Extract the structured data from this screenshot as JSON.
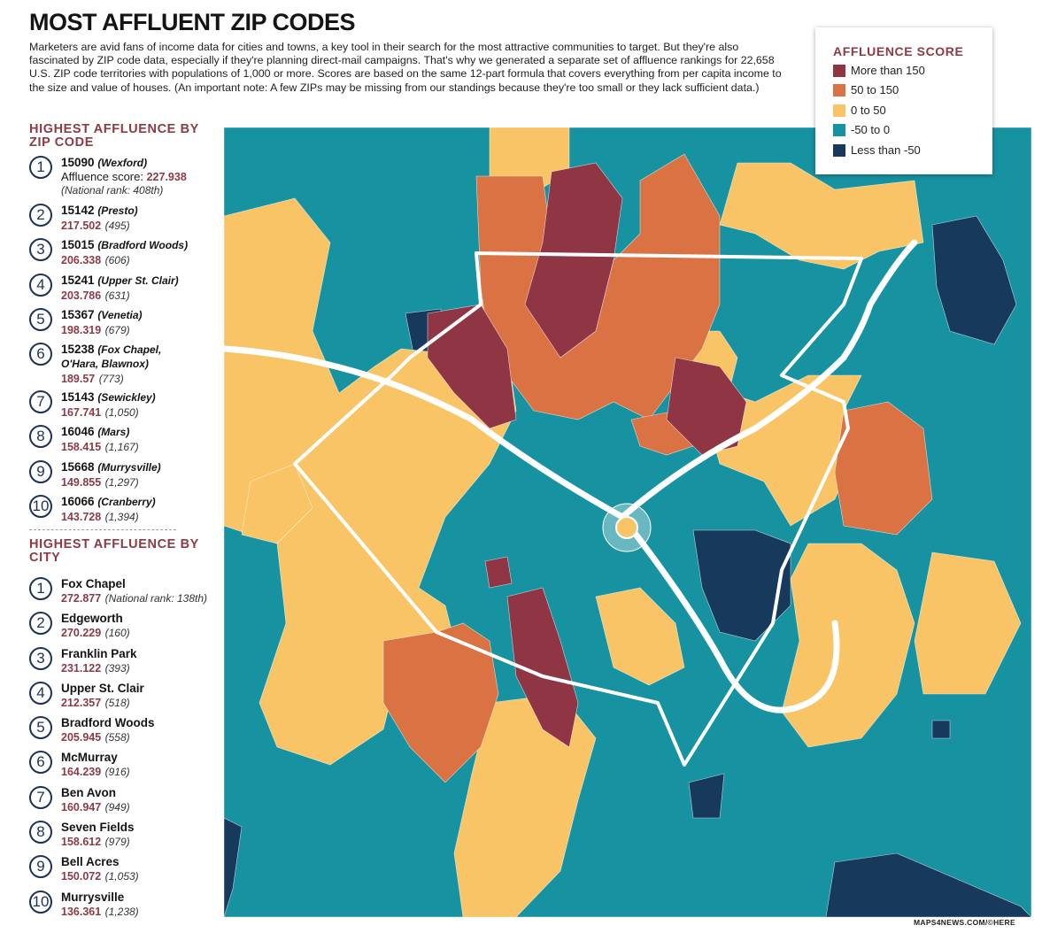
{
  "title": "MOST AFFLUENT ZIP CODES",
  "intro": "Marketers are avid fans of income data for cities and towns, a key tool in their search for the most attractive communities to target. But they're also fascinated by ZIP code data, especially if they're planning direct-mail campaigns. That's why we generated a separate set of affluence rankings for 22,658 U.S. ZIP code territories with populations of 1,000 or more. Scores are based on the same 12-part formula that covers everything from per capita income to the size and value of houses. (An important note: A few ZIPs may be missing from our standings because they're too small or they lack sufficient data.)",
  "zip_section": {
    "heading": "HIGHEST AFFLUENCE BY ZIP CODE",
    "items": [
      {
        "rank": "1",
        "zip": "15090",
        "place": "(Wexford)",
        "score_label": "Affluence score: ",
        "score": "227.938",
        "national": "(National rank: 408th)"
      },
      {
        "rank": "2",
        "zip": "15142",
        "place": "(Presto)",
        "score": "217.502",
        "national": "(495)"
      },
      {
        "rank": "3",
        "zip": "15015",
        "place": "(Bradford Woods)",
        "score": "206.338",
        "national": "(606)"
      },
      {
        "rank": "4",
        "zip": "15241",
        "place": "(Upper St. Clair)",
        "score": "203.786",
        "national": "(631)"
      },
      {
        "rank": "5",
        "zip": "15367",
        "place": "(Venetia)",
        "score": "198.319",
        "national": "(679)"
      },
      {
        "rank": "6",
        "zip": "15238",
        "place": "(Fox Chapel,",
        "place2": "O'Hara, Blawnox)",
        "score": "189.57",
        "national": "(773)"
      },
      {
        "rank": "7",
        "zip": "15143",
        "place": "(Sewickley)",
        "score": "167.741",
        "national": "(1,050)"
      },
      {
        "rank": "8",
        "zip": "16046",
        "place": "(Mars)",
        "score": "158.415",
        "national": "(1,167)"
      },
      {
        "rank": "9",
        "zip": "15668",
        "place": "(Murrysville)",
        "score": "149.855",
        "national": "(1,297)"
      },
      {
        "rank": "10",
        "zip": "16066",
        "place": "(Cranberry)",
        "score": "143.728",
        "national": "(1,394)"
      }
    ]
  },
  "city_section": {
    "heading": "HIGHEST AFFLUENCE BY CITY",
    "items": [
      {
        "rank": "1",
        "city": "Fox Chapel",
        "score": "272.877",
        "national": "(National rank: 138th)"
      },
      {
        "rank": "2",
        "city": "Edgeworth",
        "score": "270.229",
        "national": "(160)"
      },
      {
        "rank": "3",
        "city": "Franklin Park",
        "score": "231.122",
        "national": "(393)"
      },
      {
        "rank": "4",
        "city": "Upper St. Clair",
        "score": "212.357",
        "national": "(518)"
      },
      {
        "rank": "5",
        "city": "Bradford Woods",
        "score": "205.945",
        "national": "(558)"
      },
      {
        "rank": "6",
        "city": "McMurray",
        "score": "164.239",
        "national": "(916)"
      },
      {
        "rank": "7",
        "city": "Ben Avon",
        "score": "160.947",
        "national": "(949)"
      },
      {
        "rank": "8",
        "city": "Seven Fields",
        "score": "158.612",
        "national": "(979)"
      },
      {
        "rank": "9",
        "city": "Bell Acres",
        "score": "150.072",
        "national": "(1,053)"
      },
      {
        "rank": "10",
        "city": "Murrysville",
        "score": "136.361",
        "national": "(1,238)"
      }
    ]
  },
  "legend": {
    "title": "AFFLUENCE SCORE",
    "items": [
      {
        "label": "More than 150",
        "color": "#8f3544"
      },
      {
        "label": "50 to 150",
        "color": "#db7243"
      },
      {
        "label": "0 to 50",
        "color": "#f9c466"
      },
      {
        "label": "-50 to 0",
        "color": "#1792a0"
      },
      {
        "label": "Less than -50",
        "color": "#173a5c"
      }
    ]
  },
  "map_colors": {
    "high": "#8f3544",
    "mid_high": "#db7243",
    "mid": "#f9c466",
    "low": "#1792a0",
    "very_low": "#173a5c",
    "boundary": "#ffffff"
  },
  "credit": "MAPS4NEWS.COM/©HERE"
}
